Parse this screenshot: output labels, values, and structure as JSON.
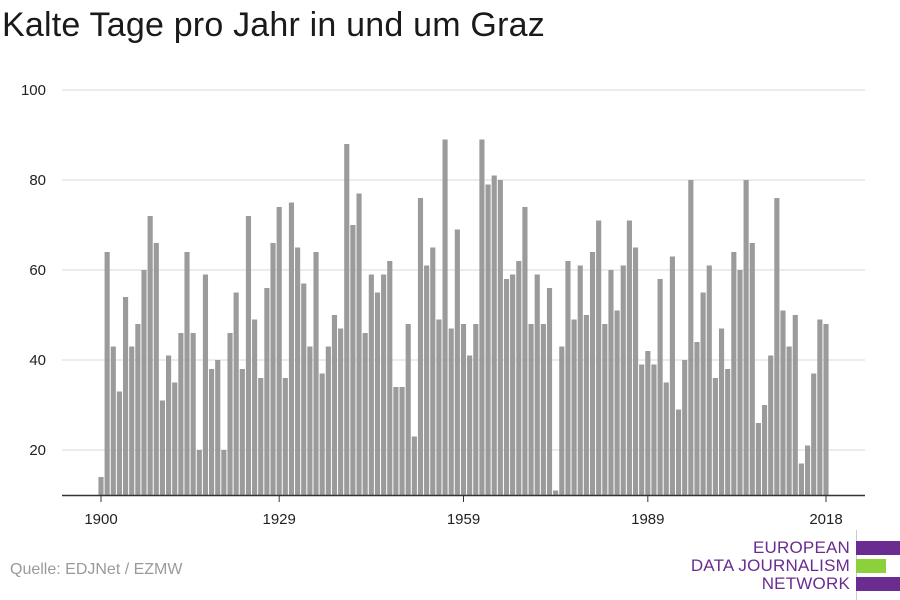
{
  "title": "Kalte Tage pro Jahr in und um Graz",
  "source": "Quelle: EDJNet / EZMW",
  "logo": {
    "lines": [
      "EUROPEAN",
      "DATA JOURNALISM",
      "NETWORK"
    ],
    "colors": [
      "#6a2c91",
      "#8cd03c",
      "#6a2c91"
    ]
  },
  "colors": {
    "bar": "#9b9b9b",
    "grid": "#d9d9d9",
    "axis": "#333333",
    "logo_text": "#6a2c91"
  },
  "chart_data": {
    "type": "bar",
    "title": "Kalte Tage pro Jahr in und um Graz",
    "xlabel": "",
    "ylabel": "",
    "ylim": [
      10,
      100
    ],
    "yticks": [
      20,
      40,
      60,
      80,
      100
    ],
    "xticks": [
      1900,
      1929,
      1959,
      1989,
      2018
    ],
    "grid": true,
    "x": [
      1900,
      1901,
      1902,
      1903,
      1904,
      1905,
      1906,
      1907,
      1908,
      1909,
      1910,
      1911,
      1912,
      1913,
      1914,
      1915,
      1916,
      1917,
      1918,
      1919,
      1920,
      1921,
      1922,
      1923,
      1924,
      1925,
      1926,
      1927,
      1928,
      1929,
      1930,
      1931,
      1932,
      1933,
      1934,
      1935,
      1936,
      1937,
      1938,
      1939,
      1940,
      1941,
      1942,
      1943,
      1944,
      1945,
      1946,
      1947,
      1948,
      1949,
      1950,
      1951,
      1952,
      1953,
      1954,
      1955,
      1956,
      1957,
      1958,
      1959,
      1960,
      1961,
      1962,
      1963,
      1964,
      1965,
      1966,
      1967,
      1968,
      1969,
      1970,
      1971,
      1972,
      1973,
      1974,
      1975,
      1976,
      1977,
      1978,
      1979,
      1980,
      1981,
      1982,
      1983,
      1984,
      1985,
      1986,
      1987,
      1988,
      1989,
      1990,
      1991,
      1992,
      1993,
      1994,
      1995,
      1996,
      1997,
      1998,
      1999,
      2000,
      2001,
      2002,
      2003,
      2004,
      2005,
      2006,
      2007,
      2008,
      2009,
      2010,
      2011,
      2012,
      2013,
      2014,
      2015,
      2016,
      2017,
      2018
    ],
    "values": [
      14,
      64,
      43,
      33,
      54,
      43,
      48,
      60,
      72,
      66,
      31,
      41,
      35,
      46,
      64,
      46,
      20,
      59,
      38,
      40,
      20,
      46,
      55,
      38,
      72,
      49,
      36,
      56,
      66,
      74,
      36,
      75,
      65,
      57,
      43,
      64,
      37,
      43,
      50,
      47,
      88,
      70,
      77,
      46,
      59,
      55,
      59,
      62,
      34,
      34,
      48,
      23,
      76,
      61,
      65,
      49,
      89,
      47,
      69,
      48,
      41,
      48,
      89,
      79,
      81,
      80,
      58,
      59,
      62,
      74,
      48,
      59,
      48,
      56,
      11,
      43,
      62,
      49,
      61,
      50,
      64,
      71,
      48,
      60,
      51,
      61,
      71,
      65,
      39,
      42,
      39,
      58,
      35,
      63,
      29,
      40,
      80,
      44,
      55,
      61,
      36,
      47,
      38,
      64,
      60,
      80,
      66,
      26,
      30,
      41,
      76,
      51,
      43,
      50,
      17,
      21,
      37,
      49,
      48
    ]
  }
}
